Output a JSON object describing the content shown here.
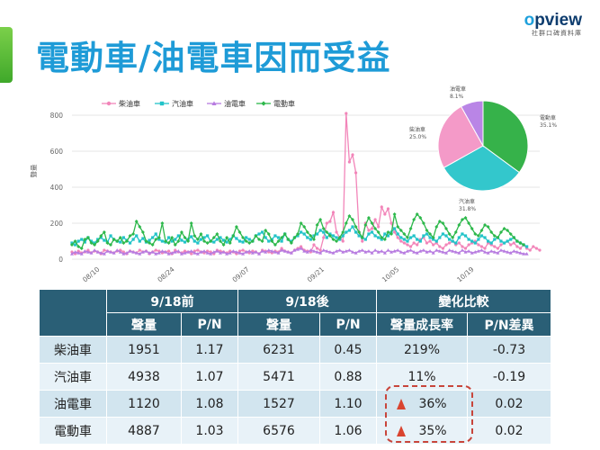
{
  "title": "電動車/油電車因而受益",
  "logo": {
    "word_pre": "",
    "word_o": "o",
    "word_rest": "pview",
    "sub": "社群口碑資料庫"
  },
  "chart_data": [
    {
      "type": "line",
      "ylabel": "聲量",
      "xlabel": "",
      "ylim": [
        0,
        800
      ],
      "yticks": [
        0,
        200,
        400,
        600,
        800
      ],
      "x_tick_labels": [
        "08/10",
        "08/24",
        "09/07",
        "09/21",
        "10/05",
        "10/19"
      ],
      "legend": "top",
      "grid": true,
      "series": [
        {
          "name": "柴油車",
          "color": "#f285b9",
          "marker": "circle",
          "values": [
            40,
            30,
            45,
            35,
            40,
            50,
            35,
            45,
            40,
            30,
            50,
            45,
            40,
            35,
            45,
            50,
            40,
            30,
            45,
            40,
            35,
            50,
            40,
            45,
            30,
            40,
            50,
            45,
            35,
            40,
            45,
            30,
            50,
            40,
            35,
            45,
            40,
            30,
            45,
            50,
            40,
            35,
            45,
            40,
            30,
            50,
            45,
            40,
            35,
            45,
            40,
            30,
            45,
            50,
            40,
            35,
            45,
            40,
            30,
            50,
            45,
            40,
            35,
            45,
            40,
            60,
            45,
            40,
            35,
            50,
            60,
            70,
            50,
            45,
            40,
            80,
            60,
            50,
            120,
            200,
            210,
            260,
            150,
            120,
            100,
            810,
            540,
            580,
            480,
            150,
            100,
            200,
            160,
            170,
            220,
            180,
            290,
            250,
            280,
            200,
            150,
            120,
            100,
            90,
            80,
            70,
            90,
            80,
            110,
            120,
            90,
            100,
            80,
            90,
            70,
            60,
            80,
            90,
            100,
            80,
            90,
            70,
            60,
            80,
            90,
            100,
            80,
            70,
            60,
            90,
            80,
            70,
            60,
            80,
            90,
            100,
            80,
            90,
            70,
            60,
            80,
            60,
            50,
            70,
            60,
            50
          ]
        },
        {
          "name": "汽油車",
          "color": "#22c3c9",
          "marker": "square",
          "values": [
            90,
            80,
            100,
            110,
            95,
            120,
            100,
            90,
            110,
            120,
            105,
            95,
            130,
            110,
            100,
            95,
            120,
            105,
            90,
            110,
            130,
            100,
            115,
            95,
            105,
            120,
            140,
            110,
            100,
            95,
            120,
            100,
            110,
            130,
            105,
            95,
            110,
            125,
            100,
            90,
            110,
            120,
            130,
            100,
            95,
            110,
            120,
            105,
            95,
            110,
            130,
            115,
            100,
            95,
            120,
            110,
            100,
            130,
            140,
            150,
            120,
            100,
            110,
            130,
            120,
            100,
            140,
            110,
            100,
            120,
            130,
            150,
            140,
            120,
            110,
            130,
            140,
            160,
            150,
            120,
            140,
            130,
            120,
            110,
            130,
            150,
            160,
            180,
            150,
            130,
            120,
            110,
            140,
            150,
            130,
            120,
            110,
            140,
            130,
            150,
            170,
            140,
            120,
            110,
            100,
            120,
            130,
            110,
            100,
            130,
            140,
            120,
            110,
            100,
            120,
            140,
            130,
            110,
            100,
            90,
            120,
            140,
            130,
            110,
            100,
            90,
            110,
            130,
            120,
            100,
            90,
            110,
            120,
            100,
            90,
            100,
            110,
            120,
            100,
            90,
            80,
            70
          ]
        },
        {
          "name": "油電車",
          "color": "#b77be0",
          "marker": "triangle",
          "values": [
            30,
            40,
            35,
            30,
            45,
            40,
            35,
            50,
            40,
            35,
            30,
            45,
            40,
            35,
            50,
            40,
            30,
            35,
            45,
            40,
            35,
            30,
            40,
            45,
            35,
            40,
            30,
            35,
            45,
            40,
            30,
            35,
            40,
            45,
            30,
            35,
            40,
            45,
            35,
            30,
            40,
            45,
            35,
            30,
            40,
            45,
            35,
            40,
            30,
            35,
            45,
            40,
            35,
            30,
            40,
            45,
            35,
            40,
            30,
            45,
            40,
            50,
            45,
            40,
            35,
            50,
            45,
            40,
            35,
            50,
            55,
            60,
            45,
            40,
            50,
            45,
            40,
            35,
            50,
            45,
            40,
            35,
            45,
            50,
            40,
            45,
            50,
            40,
            35,
            45,
            50,
            40,
            45,
            35,
            50,
            40,
            45,
            35,
            50,
            40,
            45,
            50,
            40,
            35,
            45,
            50,
            40,
            35,
            45,
            50,
            40,
            45,
            35,
            50,
            45,
            40,
            35,
            50,
            45,
            40,
            35,
            50,
            40,
            45,
            35,
            40,
            45,
            50,
            40,
            35,
            45,
            40,
            35,
            50,
            45,
            40,
            35,
            45,
            40,
            35,
            30,
            30
          ]
        },
        {
          "name": "電動車",
          "color": "#2db84b",
          "marker": "diamond",
          "values": [
            80,
            100,
            70,
            60,
            110,
            120,
            90,
            80,
            100,
            130,
            150,
            90,
            80,
            110,
            100,
            120,
            90,
            100,
            130,
            140,
            210,
            180,
            150,
            100,
            90,
            80,
            110,
            120,
            200,
            100,
            90,
            120,
            80,
            100,
            150,
            120,
            100,
            200,
            130,
            110,
            140,
            100,
            90,
            100,
            120,
            140,
            100,
            80,
            120,
            90,
            130,
            180,
            150,
            120,
            100,
            90,
            100,
            130,
            110,
            100,
            160,
            140,
            100,
            80,
            100,
            120,
            140,
            110,
            90,
            120,
            140,
            200,
            180,
            150,
            130,
            110,
            190,
            220,
            170,
            150,
            130,
            110,
            100,
            120,
            150,
            200,
            240,
            220,
            180,
            150,
            120,
            190,
            230,
            200,
            170,
            150,
            120,
            110,
            150,
            140,
            250,
            180,
            160,
            140,
            120,
            170,
            220,
            250,
            230,
            200,
            160,
            140,
            120,
            180,
            210,
            200,
            170,
            140,
            120,
            150,
            190,
            220,
            230,
            200,
            170,
            140,
            130,
            160,
            190,
            180,
            150,
            130,
            120,
            150,
            170,
            160,
            140,
            120,
            100,
            90,
            80
          ]
        }
      ]
    },
    {
      "type": "pie",
      "slices": [
        {
          "name": "電動車",
          "value": 35.1,
          "pct_label": "35.1%",
          "color": "#36b24a"
        },
        {
          "name": "汽油車",
          "value": 31.8,
          "pct_label": "31.8%",
          "color": "#33c7cc"
        },
        {
          "name": "柴油車",
          "value": 25.0,
          "pct_label": "25.0%",
          "color": "#f49ac8"
        },
        {
          "name": "油電車",
          "value": 8.1,
          "pct_label": "8.1%",
          "color": "#b985e6"
        }
      ]
    },
    {
      "type": "table",
      "group_headers": [
        "9/18前",
        "9/18後",
        "變化比較"
      ],
      "sub_headers": [
        "聲量",
        "P/N",
        "聲量",
        "P/N",
        "聲量成長率",
        "P/N差異"
      ],
      "rows": [
        {
          "label": "柴油車",
          "cells": [
            "1951",
            "1.17",
            "6231",
            "0.45",
            "219%",
            "-0.73"
          ]
        },
        {
          "label": "汽油車",
          "cells": [
            "4938",
            "1.07",
            "5471",
            "0.88",
            "11%",
            "-0.19"
          ]
        },
        {
          "label": "油電車",
          "cells": [
            "1120",
            "1.08",
            "1527",
            "1.10",
            "36%",
            "0.02"
          ]
        },
        {
          "label": "電動車",
          "cells": [
            "4887",
            "1.03",
            "6576",
            "1.06",
            "35%",
            "0.02"
          ]
        }
      ]
    }
  ]
}
